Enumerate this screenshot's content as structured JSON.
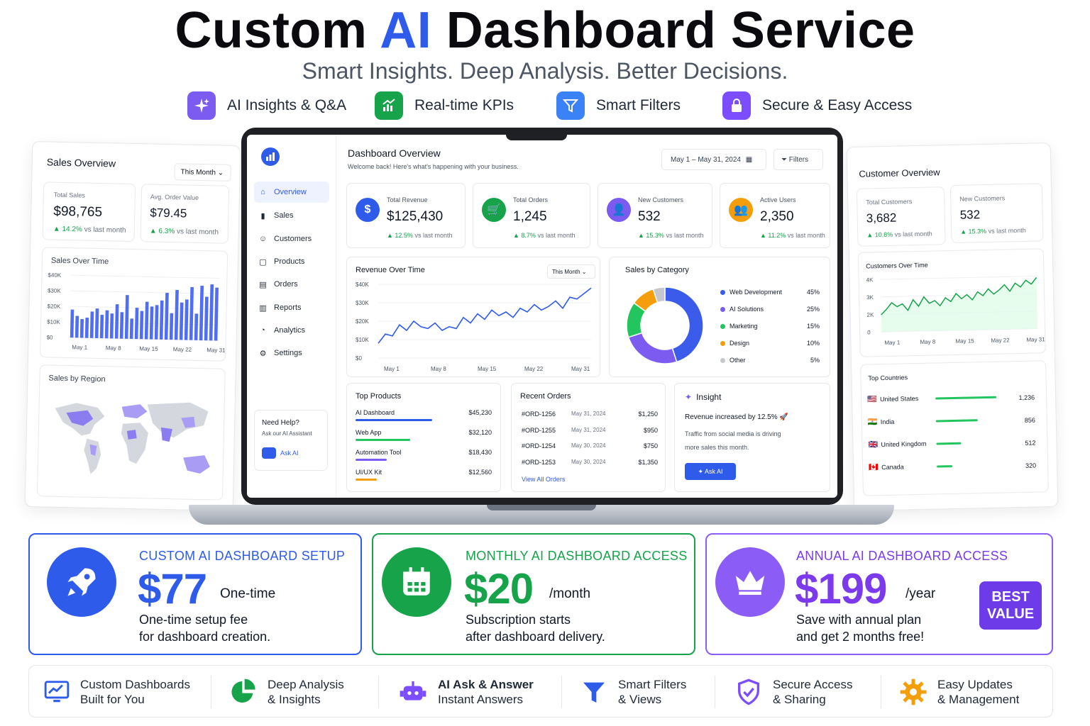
{
  "header": {
    "title_pre": "Custom ",
    "title_ai": "AI",
    "title_post": " Dashboard Service",
    "subtitle": "Smart Insights. Deep Analysis. Better Decisions."
  },
  "features": [
    {
      "label": "AI Insights & Q&A",
      "icon": "sparkle-icon",
      "color": "#7c5cf0"
    },
    {
      "label": "Real-time KPIs",
      "icon": "chart-icon",
      "color": "#16a34a"
    },
    {
      "label": "Smart Filters",
      "icon": "funnel-icon",
      "color": "#3b82f6"
    },
    {
      "label": "Secure & Easy Access",
      "icon": "lock-icon",
      "color": "#7c4dff"
    }
  ],
  "sales_overview": {
    "title": "Sales Overview",
    "period": "This Month",
    "total_sales_label": "Total Sales",
    "total_sales": "$98,765",
    "total_sales_change": "▲ 14.2%",
    "aov_label": "Avg. Order Value",
    "aov": "$79.45",
    "aov_change": "▲ 6.3%",
    "vs": "vs last month",
    "sales_over_time_title": "Sales Over Time",
    "sales_by_region_title": "Sales by Region"
  },
  "sales_over_time_chart": {
    "chart_data": {
      "type": "bar",
      "y_ticks": [
        "$40K",
        "$30K",
        "$20K",
        "$10K",
        "$0"
      ],
      "x_ticks": [
        "May 1",
        "May 8",
        "May 15",
        "May 22",
        "May 31"
      ],
      "ylim": [
        0,
        40000
      ],
      "values": [
        18000,
        14000,
        12000,
        13000,
        17000,
        19000,
        15000,
        18000,
        16000,
        22000,
        17000,
        28000,
        13000,
        20000,
        18000,
        24000,
        21000,
        22000,
        25000,
        30000,
        17000,
        32000,
        24000,
        26000,
        34000,
        17000,
        35000,
        28000,
        36000,
        34000
      ]
    }
  },
  "dashboard": {
    "title": "Dashboard Overview",
    "welcome": "Welcome back! Here's what's happening with your business.",
    "date_range": "May 1 – May 31, 2024",
    "filters": "Filters",
    "nav": [
      "Overview",
      "Sales",
      "Customers",
      "Products",
      "Orders",
      "Reports",
      "Analytics",
      "Settings"
    ],
    "help_title": "Need Help?",
    "help_sub": "Ask our AI Assistant",
    "help_btn": "Ask AI",
    "kpis": [
      {
        "label": "Total Revenue",
        "value": "$125,430",
        "change": "▲ 12.5%",
        "color": "#2f5bea",
        "glyph": "$"
      },
      {
        "label": "Total Orders",
        "value": "1,245",
        "change": "▲ 8.7%",
        "color": "#16a34a",
        "glyph": "🛒"
      },
      {
        "label": "New Customers",
        "value": "532",
        "change": "▲ 15.3%",
        "color": "#7c5cf0",
        "glyph": "👤"
      },
      {
        "label": "Active Users",
        "value": "2,350",
        "change": "▲ 11.2%",
        "color": "#f59e0b",
        "glyph": "👥"
      }
    ],
    "vs": "vs last month",
    "revenue_title": "Revenue Over Time",
    "revenue_period": "This Month",
    "sales_cat_title": "Sales by Category",
    "top_products_title": "Top Products",
    "top_products": [
      {
        "name": "AI Dashboard",
        "value": "$45,230",
        "pct": 1.0,
        "color": "#2f5bea"
      },
      {
        "name": "Web App",
        "value": "$32,120",
        "pct": 0.71,
        "color": "#22c55e"
      },
      {
        "name": "Automation Tool",
        "value": "$18,430",
        "pct": 0.41,
        "color": "#7c5cf0"
      },
      {
        "name": "UI/UX Kit",
        "value": "$12,560",
        "pct": 0.28,
        "color": "#f59e0b"
      }
    ],
    "recent_orders_title": "Recent Orders",
    "recent_orders": [
      {
        "id": "#ORD-1256",
        "date": "May 31, 2024",
        "amount": "$1,250"
      },
      {
        "id": "#ORD-1255",
        "date": "May 31, 2024",
        "amount": "$950"
      },
      {
        "id": "#ORD-1254",
        "date": "May 30, 2024",
        "amount": "$750"
      },
      {
        "id": "#ORD-1253",
        "date": "May 30, 2024",
        "amount": "$1,350"
      }
    ],
    "view_all": "View All Orders",
    "insight_title": "Insight",
    "insight_head": "Revenue increased by 12.5% 🚀",
    "insight_body1": "Traffic from social media is driving",
    "insight_body2": "more sales this month.",
    "insight_btn": "Ask AI"
  },
  "revenue_chart": {
    "chart_data": {
      "type": "line",
      "y_ticks": [
        "$40K",
        "$30K",
        "$20K",
        "$10K",
        "$0"
      ],
      "x_ticks": [
        "May 1",
        "May 8",
        "May 15",
        "May 22",
        "May 31"
      ],
      "ylim": [
        0,
        40000
      ],
      "values": [
        8000,
        13000,
        12000,
        18000,
        15000,
        20000,
        17000,
        16000,
        19000,
        15000,
        17000,
        16000,
        22000,
        19000,
        24000,
        21000,
        26000,
        23000,
        25000,
        22000,
        27000,
        25000,
        29000,
        26000,
        28000,
        31000,
        27000,
        33000,
        32000,
        35000,
        38000
      ]
    }
  },
  "category_chart": {
    "chart_data": {
      "type": "pie",
      "labels": [
        "Web Development",
        "AI Solutions",
        "Marketing",
        "Design",
        "Other"
      ],
      "values": [
        45,
        25,
        15,
        10,
        5
      ],
      "display": [
        "45%",
        "25%",
        "15%",
        "10%",
        "5%"
      ],
      "colors": [
        "#3b5bea",
        "#7c5cf0",
        "#22c55e",
        "#f59e0b",
        "#c4c7cf"
      ]
    }
  },
  "customer_overview": {
    "title": "Customer Overview",
    "total_label": "Total Customers",
    "total": "3,682",
    "total_change": "▲ 10.8%",
    "new_label": "New Customers",
    "new": "532",
    "new_change": "▲ 15.3%",
    "vs": "vs last month",
    "cot_title": "Customers Over Time",
    "top_countries_title": "Top Countries",
    "countries": [
      {
        "name": "United States",
        "value": "1,236",
        "pct": 1.0,
        "flag": "🇺🇸"
      },
      {
        "name": "India",
        "value": "856",
        "pct": 0.69,
        "flag": "🇮🇳"
      },
      {
        "name": "United Kingdom",
        "value": "512",
        "pct": 0.41,
        "flag": "🇬🇧"
      },
      {
        "name": "Canada",
        "value": "320",
        "pct": 0.26,
        "flag": "🇨🇦"
      }
    ]
  },
  "customers_chart": {
    "chart_data": {
      "type": "area",
      "y_ticks": [
        "4K",
        "3K",
        "2K",
        "0"
      ],
      "x_ticks": [
        "May 1",
        "May 8",
        "May 15",
        "May 22",
        "May 31"
      ],
      "ylim": [
        0,
        4000
      ],
      "values": [
        1300,
        1700,
        2200,
        1900,
        2100,
        1600,
        2400,
        1900,
        2600,
        2100,
        2300,
        1900,
        2500,
        2200,
        2800,
        2400,
        2700,
        2300,
        2900,
        2600,
        3100,
        2700,
        3000,
        3400,
        2900,
        3500,
        3200,
        3700,
        3400,
        3900
      ]
    }
  },
  "pricing": [
    {
      "title": "CUSTOM AI DASHBOARD SETUP",
      "amount": "$77",
      "per": "One-time",
      "desc1": "One-time setup fee",
      "desc2": "for dashboard creation.",
      "color": "#2f5bea",
      "icon": "rocket-icon"
    },
    {
      "title": "MONTHLY AI DASHBOARD ACCESS",
      "amount": "$20",
      "per": "/month",
      "desc1": "Subscription starts",
      "desc2": "after dashboard delivery.",
      "color": "#16a34a",
      "icon": "calendar-icon"
    },
    {
      "title": "ANNUAL AI DASHBOARD ACCESS",
      "amount": "$199",
      "per": "/year",
      "desc1": "Save with annual plan",
      "desc2": "and get 2 months free!",
      "color": "#7c3aed",
      "icon": "crown-icon",
      "badge1": "BEST",
      "badge2": "VALUE"
    }
  ],
  "bottom_features": [
    {
      "l1": "Custom Dashboards",
      "l2": "Built for You",
      "icon": "monitor-chart-icon"
    },
    {
      "l1": "Deep Analysis",
      "l2": "& Insights",
      "icon": "pie-icon"
    },
    {
      "l1": "AI Ask & Answer",
      "l2": "Instant Answers",
      "icon": "robot-icon"
    },
    {
      "l1": "Smart Filters",
      "l2": "& Views",
      "icon": "funnel-icon"
    },
    {
      "l1": "Secure Access",
      "l2": "& Sharing",
      "icon": "shield-icon"
    },
    {
      "l1": "Easy Updates",
      "l2": "& Management",
      "icon": "gear-icon"
    }
  ]
}
